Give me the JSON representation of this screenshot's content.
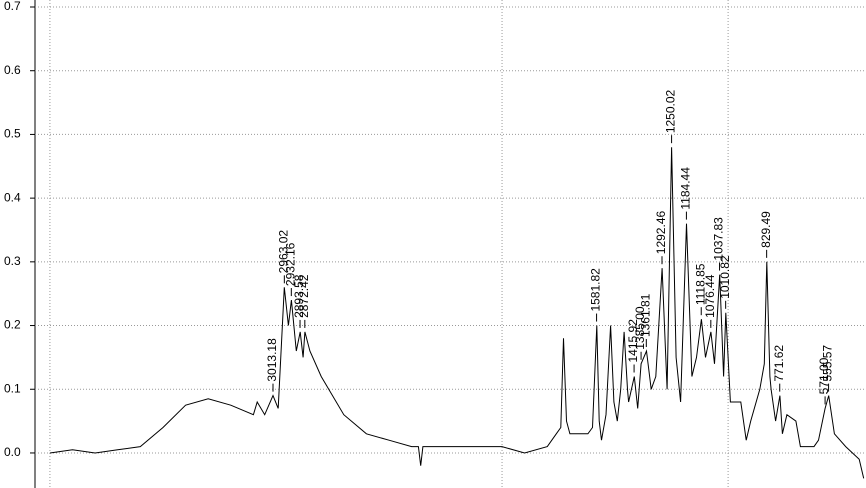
{
  "chart_data": {
    "type": "line",
    "color": "#000000",
    "grid": true,
    "xlim": [
      4066,
      390
    ],
    "ylim": [
      -0.055,
      0.711
    ],
    "yticks": [
      {
        "value": 0,
        "label": "0.0"
      },
      0.1,
      0.2,
      0.3,
      0.4,
      0.5,
      0.6,
      0.7
    ],
    "xgrid": [
      4000,
      2000,
      1000
    ],
    "x": [
      4000,
      3900,
      3800,
      3700,
      3600,
      3500,
      3400,
      3300,
      3200,
      3100,
      3083,
      3050,
      3013,
      2990,
      2963,
      2945,
      2932,
      2910,
      2893,
      2880,
      2872,
      2850,
      2800,
      2700,
      2600,
      2500,
      2400,
      2370,
      2360,
      2350,
      2300,
      2200,
      2000,
      1900,
      1800,
      1760,
      1740,
      1728,
      1715,
      1700,
      1620,
      1600,
      1581,
      1570,
      1560,
      1540,
      1520,
      1505,
      1490,
      1475,
      1460,
      1445,
      1440,
      1415,
      1400,
      1385,
      1361,
      1340,
      1320,
      1292,
      1270,
      1250,
      1230,
      1210,
      1184,
      1160,
      1140,
      1118,
      1100,
      1076,
      1060,
      1037,
      1020,
      1010,
      990,
      944,
      920,
      900,
      860,
      840,
      829,
      815,
      810,
      790,
      771,
      760,
      740,
      700,
      680,
      620,
      600,
      571,
      555,
      530,
      480,
      420,
      400
    ],
    "y": [
      0.0,
      0.005,
      0.0,
      0.005,
      0.01,
      0.04,
      0.075,
      0.085,
      0.075,
      0.06,
      0.08,
      0.06,
      0.09,
      0.07,
      0.26,
      0.2,
      0.24,
      0.16,
      0.19,
      0.15,
      0.19,
      0.16,
      0.12,
      0.06,
      0.03,
      0.02,
      0.01,
      0.01,
      -0.02,
      0.01,
      0.01,
      0.01,
      0.01,
      0.0,
      0.01,
      0.03,
      0.04,
      0.18,
      0.05,
      0.03,
      0.03,
      0.04,
      0.2,
      0.05,
      0.02,
      0.06,
      0.2,
      0.08,
      0.05,
      0.1,
      0.19,
      0.1,
      0.08,
      0.12,
      0.07,
      0.14,
      0.16,
      0.1,
      0.12,
      0.29,
      0.1,
      0.48,
      0.15,
      0.08,
      0.36,
      0.12,
      0.15,
      0.21,
      0.15,
      0.19,
      0.14,
      0.28,
      0.12,
      0.22,
      0.08,
      0.08,
      0.02,
      0.05,
      0.1,
      0.14,
      0.3,
      0.12,
      0.1,
      0.05,
      0.09,
      0.03,
      0.06,
      0.05,
      0.01,
      0.01,
      0.02,
      0.07,
      0.09,
      0.03,
      0.01,
      -0.01,
      -0.04
    ],
    "peak_labels": [
      "3013.18",
      "2963.02",
      "2932.16",
      "2893.58",
      "2872.42",
      "1581.82",
      "1415.92",
      "1385.00",
      "1361.81",
      "1292.46",
      "1250.02",
      "1184.44",
      "1118.85",
      "1076.44",
      "1037.83",
      "1010.82",
      "829.49",
      "771.62",
      "571.00",
      "555.57"
    ],
    "peak_x": [
      3013.18,
      2963.02,
      2932.16,
      2893.58,
      2872.42,
      1581.82,
      1415.92,
      1385,
      1361.81,
      1292.46,
      1250.02,
      1184.44,
      1118.85,
      1076.44,
      1037.83,
      1010.82,
      829.49,
      771.62,
      571,
      555.57
    ],
    "peak_y": [
      0.09,
      0.26,
      0.24,
      0.19,
      0.19,
      0.2,
      0.12,
      0.14,
      0.16,
      0.29,
      0.48,
      0.36,
      0.21,
      0.19,
      0.28,
      0.22,
      0.3,
      0.09,
      0.07,
      0.09
    ]
  }
}
